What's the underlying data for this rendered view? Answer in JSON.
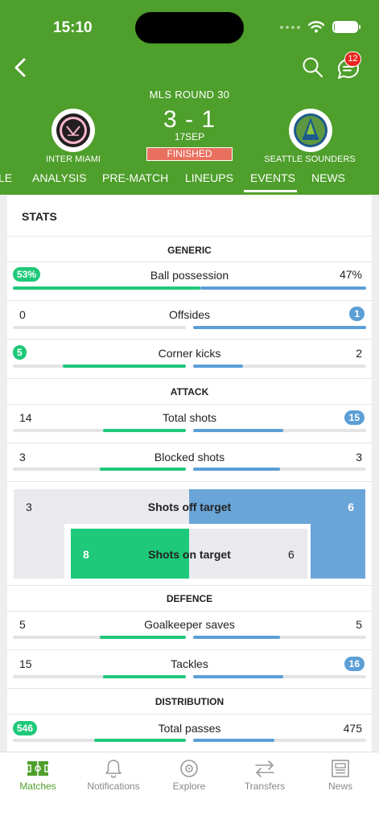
{
  "status_bar": {
    "time": "15:10"
  },
  "header": {
    "round": "MLS ROUND 30",
    "score": "3 - 1",
    "date": "17SEP",
    "status": "FINISHED",
    "chat_badge": "12",
    "home_team": "INTER MIAMI",
    "away_team": "SEATTLE SOUNDERS"
  },
  "tabs": [
    {
      "label": "LE"
    },
    {
      "label": "ANALYSIS"
    },
    {
      "label": "PRE-MATCH"
    },
    {
      "label": "LINEUPS"
    },
    {
      "label": "EVENTS",
      "active": true
    },
    {
      "label": "NEWS"
    }
  ],
  "stats": {
    "title": "STATS",
    "sections": {
      "generic": "GENERIC",
      "attack": "ATTACK",
      "defence": "DEFENCE",
      "distribution": "DISTRIBUTION"
    },
    "rows": {
      "possession": {
        "label": "Ball possession",
        "home": "53%",
        "away": "47%",
        "home_frac": 0.53,
        "away_frac": 0.47
      },
      "offsides": {
        "label": "Offsides",
        "home": "0",
        "away": "1",
        "home_frac": 0.0,
        "away_frac": 1.0
      },
      "corners": {
        "label": "Corner kicks",
        "home": "5",
        "away": "2",
        "home_frac": 0.71,
        "away_frac": 0.29
      },
      "total_shots": {
        "label": "Total shots",
        "home": "14",
        "away": "15",
        "home_frac": 0.48,
        "away_frac": 0.52
      },
      "blocked_shots": {
        "label": "Blocked shots",
        "home": "3",
        "away": "3",
        "home_frac": 0.5,
        "away_frac": 0.5
      },
      "shots_off": {
        "label": "Shots off target",
        "home": "3",
        "away": "6"
      },
      "shots_on": {
        "label": "Shots on target",
        "home": "8",
        "away": "6"
      },
      "gk_saves": {
        "label": "Goalkeeper saves",
        "home": "5",
        "away": "5",
        "home_frac": 0.5,
        "away_frac": 0.5
      },
      "tackles": {
        "label": "Tackles",
        "home": "15",
        "away": "16",
        "home_frac": 0.48,
        "away_frac": 0.52
      },
      "total_passes": {
        "label": "Total passes",
        "home": "546",
        "away": "475",
        "home_frac": 0.53,
        "away_frac": 0.47
      }
    }
  },
  "bottom_nav": [
    {
      "label": "Matches",
      "icon": "pitch-icon",
      "active": true
    },
    {
      "label": "Notifications",
      "icon": "bell-icon"
    },
    {
      "label": "Explore",
      "icon": "compass-icon"
    },
    {
      "label": "Transfers",
      "icon": "transfer-arrows-icon"
    },
    {
      "label": "News",
      "icon": "newspaper-icon"
    }
  ],
  "colors": {
    "brand_green": "#4e9f2b",
    "home": "#1ec97a",
    "away": "#5b9fd6",
    "finished": "#e96f5f",
    "badge": "#e6271f"
  }
}
